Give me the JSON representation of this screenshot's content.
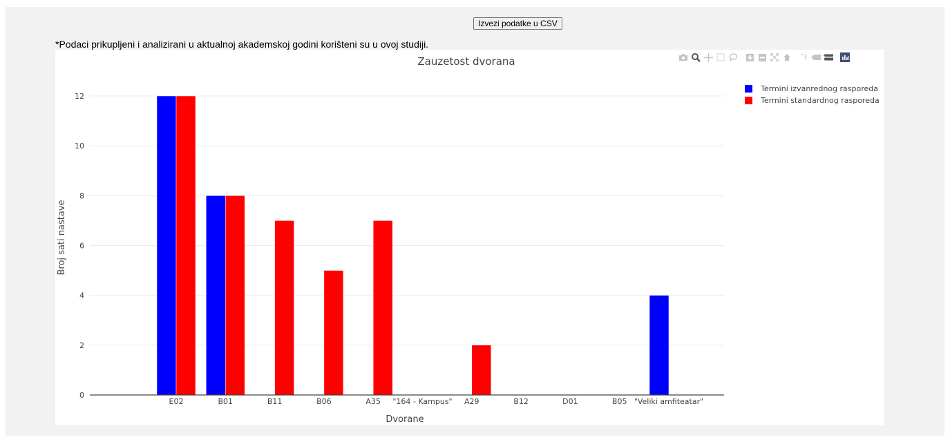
{
  "export_button": {
    "label": "Izvezi podatke u CSV"
  },
  "note": {
    "text": "*Podaci prikupljeni i analizirani u aktualnoj akademskoj godini korišteni su u ovoj studiji."
  },
  "modebar": {
    "icons": [
      "camera-icon",
      "zoom-icon",
      "pan-icon",
      "box-select-icon",
      "lasso-select-icon",
      "zoom-in-icon",
      "zoom-out-icon",
      "autoscale-icon",
      "reset-axes-icon",
      "spike-lines-icon",
      "hover-closest-icon",
      "hover-compare-icon",
      "plotly-logo-icon"
    ]
  },
  "chart_data": {
    "type": "bar",
    "title": "Zauzetost dvorana",
    "xlabel": "Dvorane",
    "ylabel": "Broj sati nastave",
    "categories": [
      "E02",
      "B01",
      "B11",
      "B06",
      "A35",
      "\"164 - Kampus\"",
      "A29",
      "B12",
      "D01",
      "B05",
      "\"Veliki amfiteatar\""
    ],
    "series": [
      {
        "name": "Termini izvanrednog rasporeda",
        "color": "#0000ff",
        "values": [
          12,
          8,
          0,
          0,
          0,
          0,
          0,
          0,
          0,
          0,
          4
        ]
      },
      {
        "name": "Termini standardnog rasporeda",
        "color": "#ff0000",
        "values": [
          12,
          8,
          7,
          5,
          7,
          0,
          2,
          0,
          0,
          0,
          0
        ]
      }
    ],
    "ylim": [
      0,
      12.4
    ],
    "yticks": [
      0,
      2,
      4,
      6,
      8,
      10,
      12
    ],
    "grid": true,
    "legend_position": "top-right"
  }
}
